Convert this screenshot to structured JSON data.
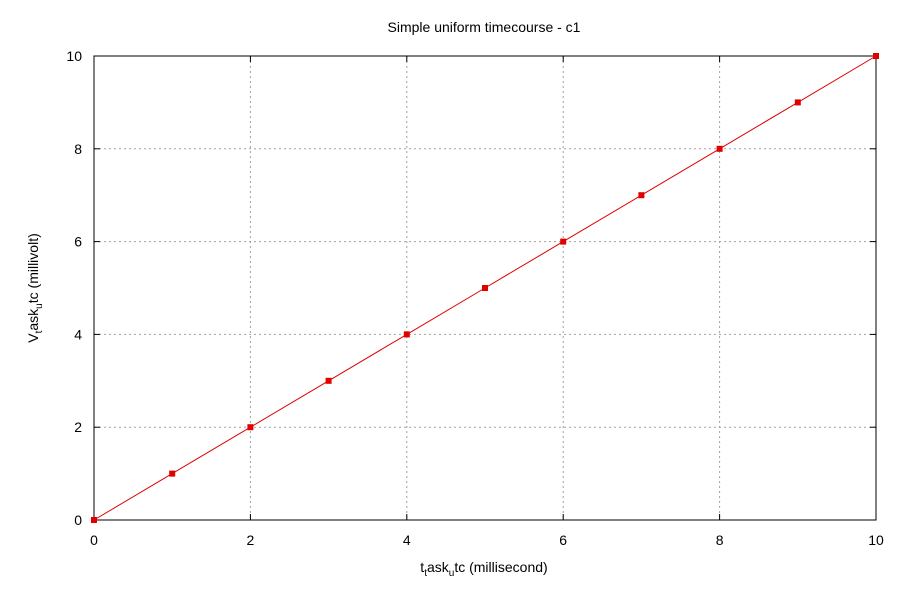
{
  "chart_data": {
    "type": "line",
    "title": "Simple uniform timecourse - c1",
    "xlabel": {
      "a": "t",
      "sub1": "t",
      "b": "ask",
      "sub2": "u",
      "c": "tc (millisecond)"
    },
    "ylabel": {
      "a": "V",
      "sub1": "t",
      "b": "ask",
      "sub2": "u",
      "c": "tc (millivolt)"
    },
    "xlim": [
      0,
      10
    ],
    "ylim": [
      0,
      10
    ],
    "xticks": [
      0,
      2,
      4,
      6,
      8,
      10
    ],
    "yticks": [
      0,
      2,
      4,
      6,
      8,
      10
    ],
    "grid": true,
    "series": [
      {
        "color": "#e00000",
        "marker": "square",
        "x": [
          0,
          1,
          2,
          3,
          4,
          5,
          6,
          7,
          8,
          9,
          10
        ],
        "y": [
          0,
          1,
          2,
          3,
          4,
          5,
          6,
          7,
          8,
          9,
          10
        ]
      }
    ]
  }
}
